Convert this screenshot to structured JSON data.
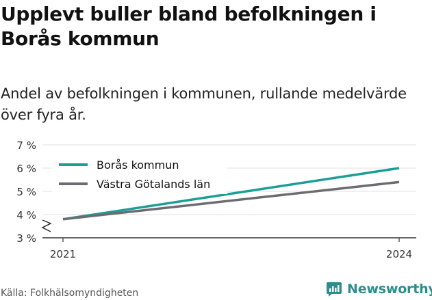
{
  "header": {
    "title": "Upplevt buller bland befolkningen i Borås kommun",
    "subtitle": "Andel av befolkningen i kommunen, rullande medelvärde över fyra år."
  },
  "footer": {
    "source": "Källa: Folkhälsomyndigheten",
    "brand": "Newsworthy"
  },
  "colors": {
    "boras": "#1a9e96",
    "vgl": "#6b6b70",
    "grid": "#e0e0e0",
    "axis": "#333333",
    "brand": "#2a8f8a"
  },
  "chart_data": {
    "type": "line",
    "x": [
      2021,
      2024
    ],
    "xticks": [
      "2021",
      "2024"
    ],
    "ylim": [
      3,
      7
    ],
    "yticks": [
      "3 %",
      "4 %",
      "5 %",
      "6 %",
      "7 %"
    ],
    "y_axis_break": true,
    "grid": true,
    "legend_position": "top-left",
    "series": [
      {
        "name": "Borås kommun",
        "values": [
          3.8,
          6.0
        ],
        "color": "#1a9e96"
      },
      {
        "name": "Västra Götalands län",
        "values": [
          3.8,
          5.4
        ],
        "color": "#6b6b70"
      }
    ]
  }
}
